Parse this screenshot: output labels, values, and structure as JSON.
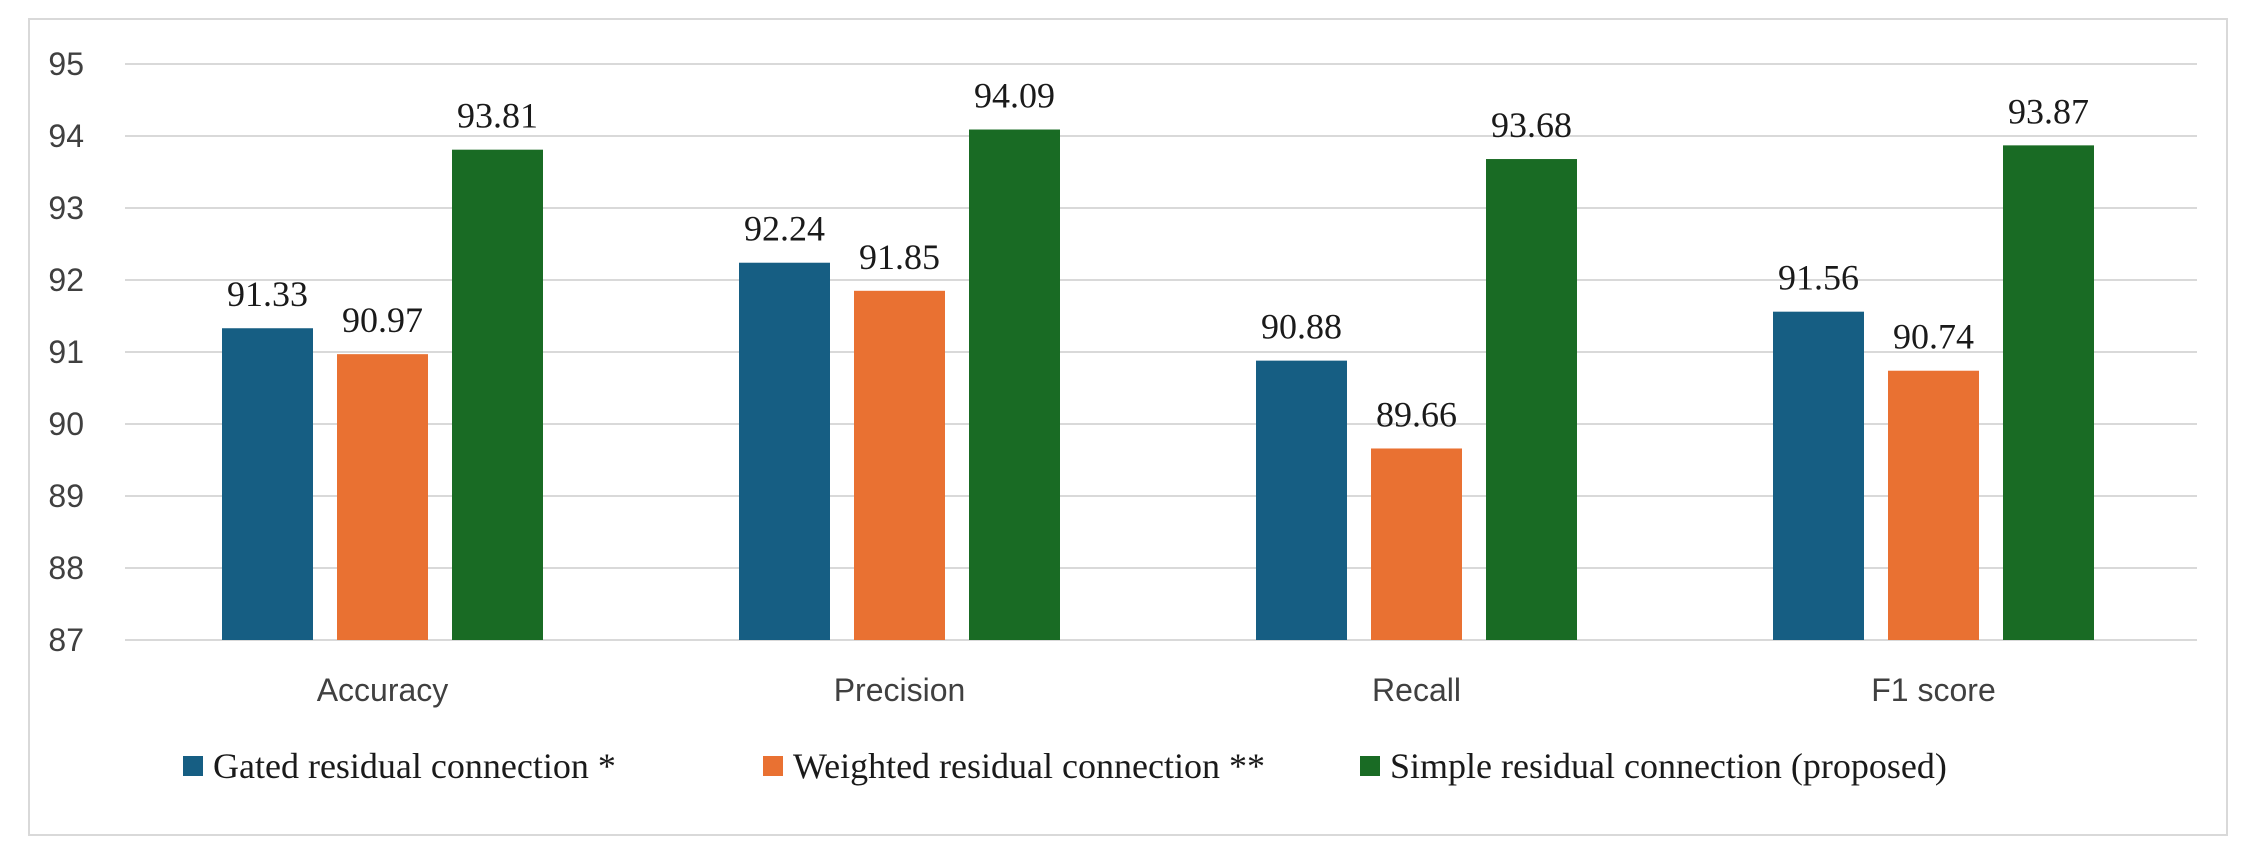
{
  "chart_data": {
    "type": "bar",
    "title": "",
    "xlabel": "",
    "ylabel": "",
    "ylim": [
      87,
      95
    ],
    "yticks": [
      87,
      88,
      89,
      90,
      91,
      92,
      93,
      94,
      95
    ],
    "grid": true,
    "legend_position": "bottom",
    "categories": [
      "Accuracy",
      "Precision",
      "Recall",
      "F1 score"
    ],
    "series": [
      {
        "name": "Gated residual connection *",
        "color": "#165e83",
        "values": [
          91.33,
          92.24,
          90.88,
          91.56
        ],
        "labels": [
          "91.33",
          "92.24",
          "90.88",
          "91.56"
        ]
      },
      {
        "name": "Weighted residual connection **",
        "color": "#e97132",
        "values": [
          90.97,
          91.85,
          89.66,
          90.74
        ],
        "labels": [
          "90.97",
          "91.85",
          "89.66",
          "90.74"
        ]
      },
      {
        "name": "Simple residual connection (proposed)",
        "color": "#196b24",
        "values": [
          93.81,
          94.09,
          93.68,
          93.87
        ],
        "labels": [
          "93.81",
          "94.09",
          "93.68",
          "93.87"
        ]
      }
    ]
  }
}
